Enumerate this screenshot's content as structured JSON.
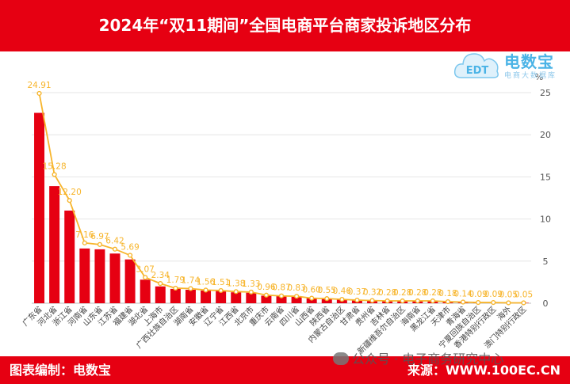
{
  "header": {
    "title": "2024年“双11期间”全国电商平台商家投诉地区分布"
  },
  "logo": {
    "name": "电数宝",
    "sub": "电商大数据库",
    "mark": "EDT"
  },
  "footer": {
    "left": "图表编制：电数宝",
    "right": "来源：WWW.100EC.CN"
  },
  "watermark": {
    "text": "公众号 · 电子商务研究中心"
  },
  "colors": {
    "bar": "#e60012",
    "line": "#f7b52c",
    "header": "#e60012",
    "grid": "#e6e6e6"
  },
  "chart_data": {
    "type": "bar",
    "categories": [
      "广东省",
      "河北省",
      "浙江省",
      "河南省",
      "山东省",
      "江苏省",
      "福建省",
      "湖北省",
      "上海市",
      "广西壮族自治区",
      "湖南省",
      "安徽省",
      "辽宁省",
      "江西省",
      "北京市",
      "重庆市",
      "云南省",
      "四川省",
      "山西省",
      "陕西省",
      "内蒙古自治区",
      "甘肃省",
      "贵州省",
      "吉林省",
      "新疆维吾尔自治区",
      "海南省",
      "黑龙江省",
      "天津市",
      "青海省",
      "宁夏回族自治区",
      "香港特别行政区",
      "海外",
      "澳门特别行政区"
    ],
    "series": [
      {
        "type": "bar",
        "values": [
          22.6,
          13.9,
          11.0,
          6.5,
          6.4,
          5.9,
          5.2,
          2.8,
          2.0,
          1.7,
          1.6,
          1.5,
          1.45,
          1.3,
          1.25,
          0.9,
          0.85,
          0.8,
          0.6,
          0.5,
          0.45,
          0.35,
          0.3,
          0.28,
          0.28,
          0.26,
          0.26,
          0.17,
          0.14,
          0.09,
          0.09,
          0.05,
          0.05
        ]
      },
      {
        "type": "line",
        "values": [
          24.91,
          15.28,
          12.2,
          7.16,
          6.97,
          6.42,
          5.69,
          3.07,
          2.34,
          1.79,
          1.74,
          1.56,
          1.51,
          1.38,
          1.33,
          0.96,
          0.87,
          0.83,
          0.6,
          0.55,
          0.46,
          0.37,
          0.32,
          0.28,
          0.28,
          0.28,
          0.28,
          0.18,
          0.14,
          0.09,
          0.09,
          0.05,
          0.05
        ]
      }
    ],
    "ylabel": "%",
    "ylim": [
      0,
      25
    ],
    "yticks": [
      0,
      5,
      10,
      15,
      20,
      25
    ],
    "grid": true
  }
}
